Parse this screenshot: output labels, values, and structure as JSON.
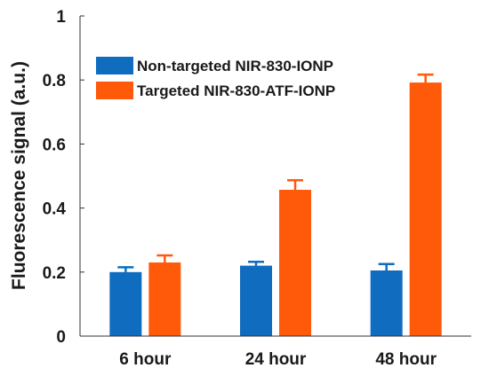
{
  "chart_data": {
    "type": "bar",
    "title": "",
    "xlabel": "",
    "ylabel": "Fluorescence signal (a.u.)",
    "ylim": [
      0,
      1
    ],
    "yticks": [
      "0",
      "0.2",
      "0.4",
      "0.6",
      "0.8",
      "1"
    ],
    "categories": [
      "6 hour",
      "24 hour",
      "48 hour"
    ],
    "legend_position": "top-left",
    "series": [
      {
        "name": "Non-targeted NIR-830-IONP",
        "color": "#0f6cbf",
        "values": [
          0.2,
          0.22,
          0.205
        ],
        "errors": [
          0.015,
          0.012,
          0.02
        ]
      },
      {
        "name": "Targeted NIR-830-ATF-IONP",
        "color": "#ff5a0a",
        "values": [
          0.23,
          0.457,
          0.792
        ],
        "errors": [
          0.022,
          0.03,
          0.025
        ]
      }
    ]
  }
}
